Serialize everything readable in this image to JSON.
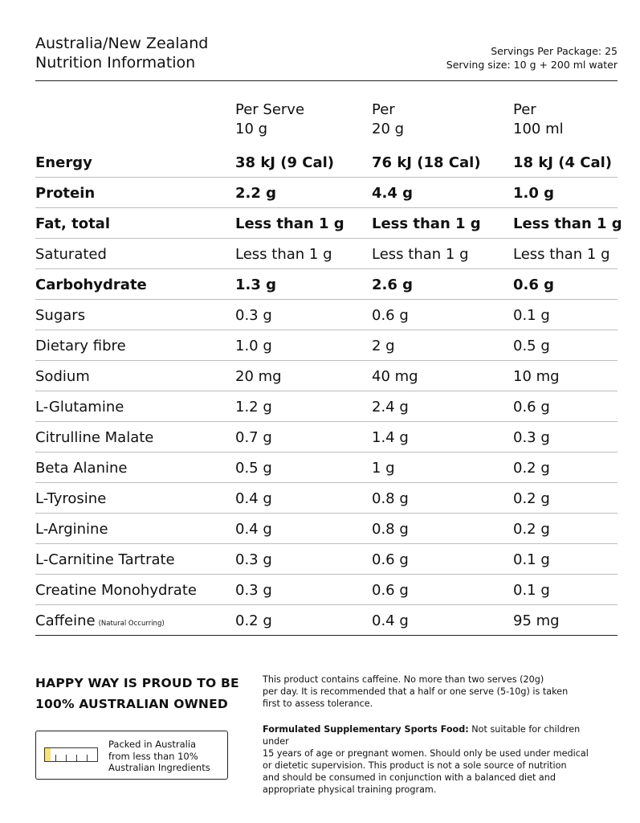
{
  "header": {
    "title_line1": "Australia/New Zealand",
    "title_line2": "Nutrition Information",
    "servings_per_package": "Servings Per Package: 25",
    "serving_size": "Serving size: 10 g + 200 ml water"
  },
  "columns": [
    {
      "line1": "Per Serve",
      "line2": "10 g"
    },
    {
      "line1": "Per",
      "line2": "20 g"
    },
    {
      "line1": "Per",
      "line2": "100 ml"
    }
  ],
  "rows": [
    {
      "name": "Energy",
      "v1": "38 kJ (9 Cal)",
      "v2": "76 kJ (18 Cal)",
      "v3": "18 kJ (4 Cal)",
      "bold": true
    },
    {
      "name": "Protein",
      "v1": "2.2 g",
      "v2": "4.4 g",
      "v3": "1.0 g",
      "bold": true
    },
    {
      "name": "Fat, total",
      "v1": "Less than 1 g",
      "v2": "Less than 1 g",
      "v3": "Less than 1 g",
      "bold": true
    },
    {
      "name": "Saturated",
      "v1": "Less than 1 g",
      "v2": "Less than 1 g",
      "v3": "Less than 1 g",
      "bold": false
    },
    {
      "name": "Carbohydrate",
      "v1": "1.3 g",
      "v2": "2.6 g",
      "v3": "0.6 g",
      "bold": true
    },
    {
      "name": "Sugars",
      "v1": "0.3 g",
      "v2": "0.6 g",
      "v3": "0.1 g",
      "bold": false
    },
    {
      "name": "Dietary fibre",
      "v1": "1.0 g",
      "v2": "2 g",
      "v3": "0.5 g",
      "bold": false
    },
    {
      "name": "Sodium",
      "v1": "20 mg",
      "v2": "40 mg",
      "v3": "10 mg",
      "bold": false
    },
    {
      "name": "L-Glutamine",
      "v1": "1.2 g",
      "v2": "2.4 g",
      "v3": "0.6 g",
      "bold": false
    },
    {
      "name": "Citrulline Malate",
      "v1": "0.7 g",
      "v2": "1.4 g",
      "v3": "0.3 g",
      "bold": false
    },
    {
      "name": "Beta Alanine",
      "v1": "0.5 g",
      "v2": "1 g",
      "v3": "0.2 g",
      "bold": false
    },
    {
      "name": "L-Tyrosine",
      "v1": "0.4 g",
      "v2": "0.8 g",
      "v3": "0.2 g",
      "bold": false
    },
    {
      "name": "L-Arginine",
      "v1": "0.4 g",
      "v2": "0.8 g",
      "v3": "0.2 g",
      "bold": false
    },
    {
      "name": "L-Carnitine Tartrate",
      "v1": "0.3 g",
      "v2": "0.6 g",
      "v3": "0.1 g",
      "bold": false
    },
    {
      "name": "Creatine Monohydrate",
      "v1": "0.3 g",
      "v2": "0.6 g",
      "v3": "0.1 g",
      "bold": false
    },
    {
      "name": "Caffeine",
      "note": "(Natural Occurring)",
      "v1": "0.2 g",
      "v2": "0.4 g",
      "v3": "95 mg",
      "bold": false
    }
  ],
  "proud": {
    "line1": "HAPPY WAY IS PROUD TO BE",
    "line2": "100% AUSTRALIAN OWNED"
  },
  "packed": {
    "line1": "Packed in Australia",
    "line2": "from less than 10%",
    "line3": "Australian Ingredients",
    "australian_ingredients_fraction": 0.1,
    "fill_color": "#f5e27a"
  },
  "caffeine_notice": {
    "line1": "This product contains caffeine. No more than two serves (20g)",
    "line2": "per day. It is recommended that a half or one serve (5-10g) is taken",
    "line3": "first to assess tolerance."
  },
  "sports_food": {
    "heading": "Formulated Supplementary Sports Food:",
    "line1_rest": " Not suitable for children under",
    "line2": "15 years of age or pregnant women. Should only be used under medical",
    "line3": "or dietetic supervision. This product is not a sole source of nutrition",
    "line4": "and should be consumed in conjunction with a balanced diet and",
    "line5": "appropriate physical training program."
  }
}
